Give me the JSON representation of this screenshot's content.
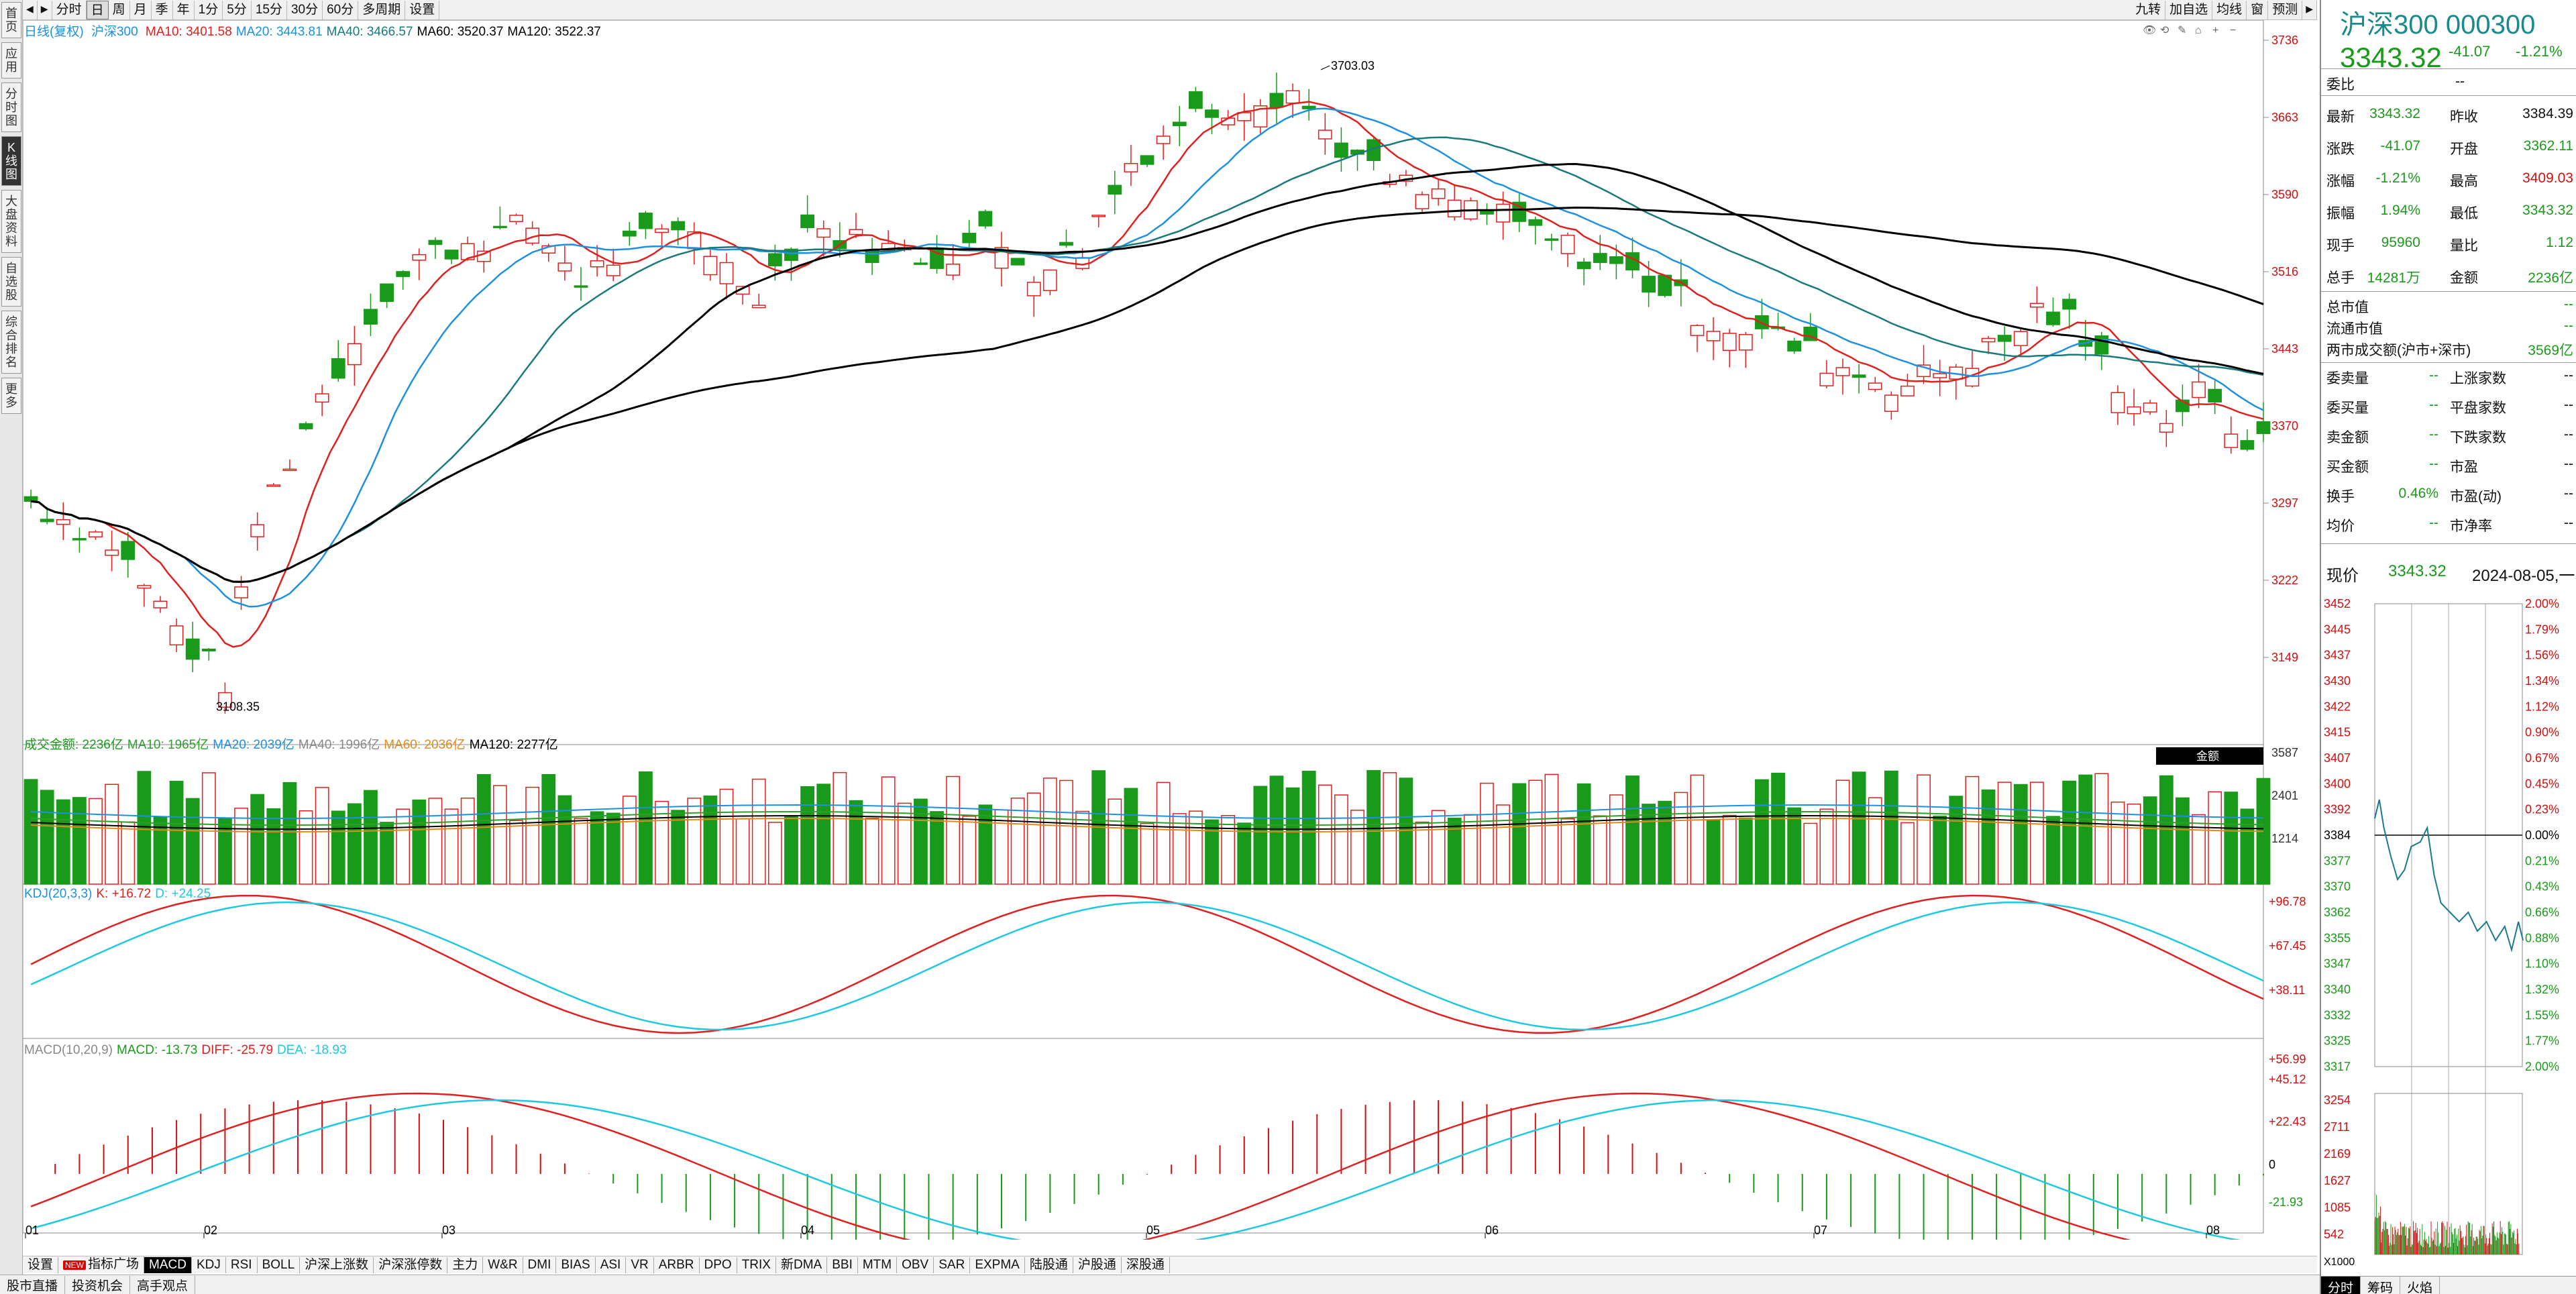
{
  "left_nav": [
    {
      "name": "home",
      "label": "首页",
      "active": false
    },
    {
      "name": "apps",
      "label": "应用",
      "active": false,
      "prefix": "✕"
    },
    {
      "name": "timeshare",
      "label": "分时图",
      "active": false
    },
    {
      "name": "kline",
      "label": "K线图",
      "active": true
    },
    {
      "name": "market-info",
      "label": "大盘资料",
      "active": false
    },
    {
      "name": "watchlist",
      "label": "自选股",
      "active": false
    },
    {
      "name": "ranking",
      "label": "综合排名",
      "active": false
    },
    {
      "name": "more",
      "label": "更多",
      "active": false
    }
  ],
  "toolbar": {
    "periods": [
      "分时",
      "日",
      "周",
      "月",
      "季",
      "年",
      "1分",
      "5分",
      "15分",
      "30分",
      "60分",
      "多周期",
      "设置"
    ],
    "active_period": "日",
    "right_buttons": [
      "九转",
      "加自选",
      "均线",
      "窗",
      "预测"
    ]
  },
  "main_legend": {
    "name": "日线(复权)",
    "index": "沪深300",
    "ma": [
      {
        "label": "MA10: 3401.58",
        "color": "#e0201e"
      },
      {
        "label": "MA20: 3443.81",
        "color": "#1e90e0"
      },
      {
        "label": "MA40: 3466.57",
        "color": "#1a7a7a"
      },
      {
        "label": "MA60: 3520.37",
        "color": "#000000"
      },
      {
        "label": "MA120: 3522.37",
        "color": "#000000"
      }
    ]
  },
  "price_axis": [
    "3736",
    "3663",
    "3590",
    "3516",
    "3443",
    "3370",
    "3297",
    "3222",
    "3149"
  ],
  "annotations": {
    "high": "3703.03",
    "low": "3108.35"
  },
  "volume_legend": [
    {
      "label": "成交金额: 2236亿",
      "color": "#1a9a1a"
    },
    {
      "label": "MA10: 1965亿",
      "color": "#2aa02a"
    },
    {
      "label": "MA20: 2039亿",
      "color": "#1e90e0"
    },
    {
      "label": "MA40: 1996亿",
      "color": "#888888"
    },
    {
      "label": "MA60: 2036亿",
      "color": "#e08a1e"
    },
    {
      "label": "MA120: 2277亿",
      "color": "#000000"
    }
  ],
  "volume_axis": [
    "3587",
    "2401",
    "1214"
  ],
  "volume_tag": "金额",
  "kdj_legend": [
    {
      "label": "KDJ(20,3,3)",
      "color": "#1e90e0"
    },
    {
      "label": "K: +16.72",
      "color": "#e0201e"
    },
    {
      "label": "D: +24.25",
      "color": "#1ec8e0"
    }
  ],
  "kdj_axis": [
    "+96.78",
    "+67.45",
    "+38.11"
  ],
  "macd_legend": [
    {
      "label": "MACD(10,20,9)",
      "color": "#888888"
    },
    {
      "label": "MACD: -13.73",
      "color": "#1a9a1a"
    },
    {
      "label": "DIFF: -25.79",
      "color": "#e0201e"
    },
    {
      "label": "DEA: -18.93",
      "color": "#1ec8e0"
    }
  ],
  "macd_axis": [
    "+56.99",
    "+45.12",
    "+22.43",
    "0",
    "-21.93"
  ],
  "x_axis": [
    "01",
    "02",
    "03",
    "04",
    "05",
    "06",
    "07",
    "08"
  ],
  "indicator_tabs": [
    "设置",
    "指标广场",
    "MACD",
    "KDJ",
    "RSI",
    "BOLL",
    "沪深上涨数",
    "沪深涨停数",
    "主力",
    "W&R",
    "DMI",
    "BIAS",
    "ASI",
    "VR",
    "ARBR",
    "DPO",
    "TRIX",
    "新DMA",
    "BBI",
    "MTM",
    "OBV",
    "SAR",
    "EXPMA",
    "陆股通",
    "沪股通",
    "深股通"
  ],
  "active_indicator": "MACD",
  "new_badge": "NEW",
  "status_bar": [
    "股市直播",
    "投资机会",
    "高手观点"
  ],
  "right_panel": {
    "title": "沪深300 000300",
    "price": "3343.32",
    "change": "-41.07",
    "change_pct": "-1.21%",
    "weibi_label": "委比",
    "weibi": "--",
    "quote": [
      [
        "最新",
        "3343.32",
        "昨收",
        "3384.39"
      ],
      [
        "涨跌",
        "-41.07",
        "开盘",
        "3362.11"
      ],
      [
        "涨幅",
        "-1.21%",
        "最高",
        "3409.03"
      ],
      [
        "振幅",
        "1.94%",
        "最低",
        "3343.32"
      ],
      [
        "现手",
        "95960",
        "量比",
        "1.12"
      ],
      [
        "总手",
        "14281万",
        "金额",
        "2236亿"
      ]
    ],
    "cap": [
      [
        "总市值",
        "--"
      ],
      [
        "流通市值",
        "--"
      ],
      [
        "两市成交额(沪市+深市)",
        "3569亿"
      ]
    ],
    "market": [
      [
        "委卖量",
        "--",
        "上涨家数",
        "--"
      ],
      [
        "委买量",
        "--",
        "平盘家数",
        "--"
      ],
      [
        "卖金额",
        "--",
        "下跌家数",
        "--"
      ],
      [
        "买金额",
        "--",
        "市盈",
        "--"
      ],
      [
        "换手",
        "0.46%",
        "市盈(动)",
        "--"
      ],
      [
        "均价",
        "--",
        "市净率",
        "--"
      ]
    ],
    "now_label": "现价",
    "now_price": "3343.32",
    "now_date": "2024-08-05,一",
    "mini_left_axis": [
      "3452",
      "3445",
      "3437",
      "3430",
      "3422",
      "3415",
      "3407",
      "3400",
      "3392",
      "3384",
      "3377",
      "3370",
      "3362",
      "3355",
      "3347",
      "3340",
      "3332",
      "3325",
      "3317"
    ],
    "mini_right_axis": [
      "2.00%",
      "1.79%",
      "1.56%",
      "1.34%",
      "1.12%",
      "0.90%",
      "0.67%",
      "0.45%",
      "0.23%",
      "0.00%",
      "0.21%",
      "0.43%",
      "0.66%",
      "0.88%",
      "1.10%",
      "1.32%",
      "1.55%",
      "1.77%",
      "2.00%"
    ],
    "mini_vol_axis": [
      "3254",
      "2711",
      "2169",
      "1627",
      "1085",
      "542"
    ],
    "mini_vol_unit": "X1000",
    "bottom_tabs": [
      "分时",
      "筹码",
      "火焰"
    ],
    "active_bottom_tab": "分时"
  }
}
